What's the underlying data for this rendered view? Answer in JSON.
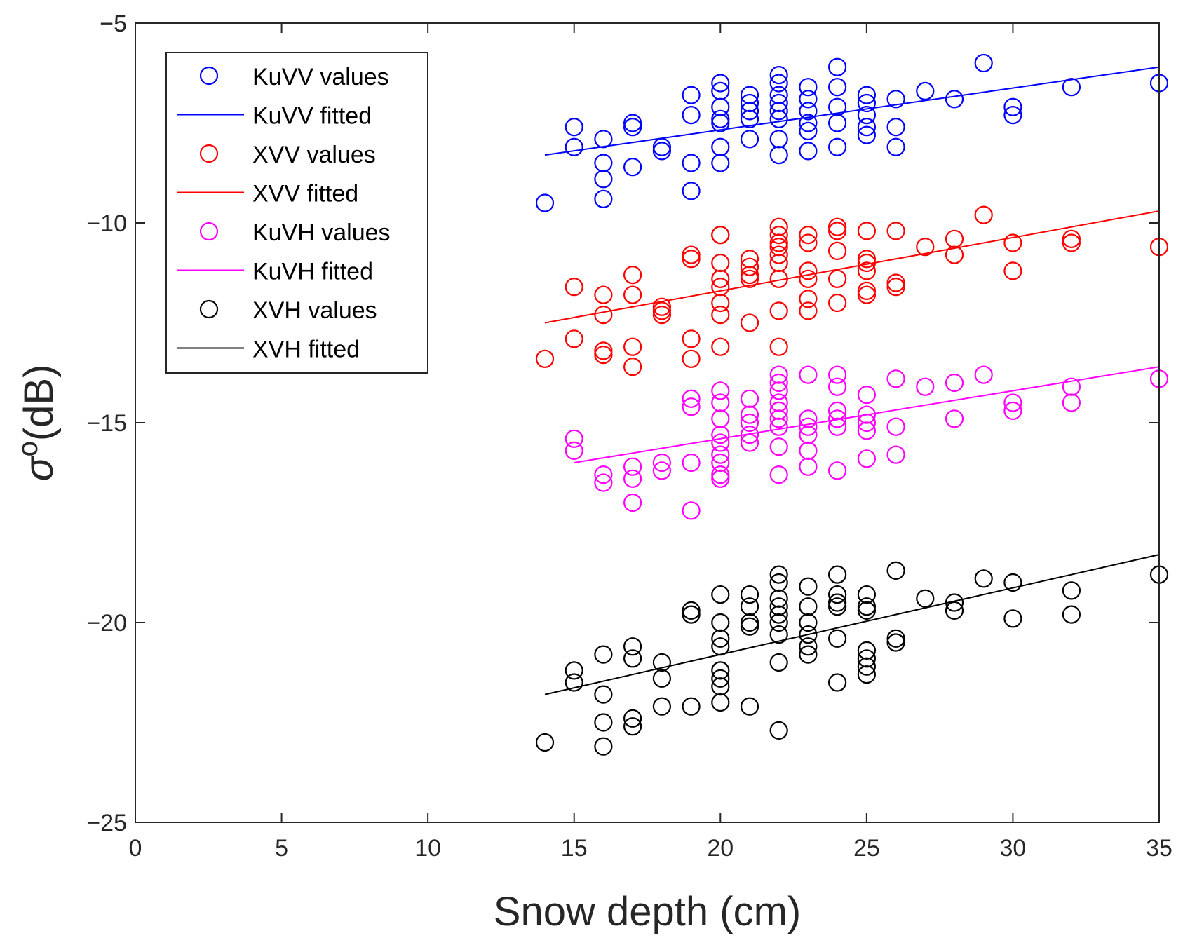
{
  "chart_data": {
    "type": "scatter",
    "xlabel": "Snow depth (cm)",
    "ylabel_symbol": "σ",
    "ylabel_superscript": "o",
    "ylabel_rest": "(dB)",
    "xlim": [
      0,
      35
    ],
    "ylim": [
      -25,
      -5
    ],
    "xticks": [
      0,
      5,
      10,
      15,
      20,
      25,
      30,
      35
    ],
    "yticks": [
      -25,
      -20,
      -15,
      -10,
      -5
    ],
    "grid": false,
    "legend_position": "top-left",
    "series": [
      {
        "name": "KuVV values",
        "fit_name": "KuVV fitted",
        "color": "#0000ff",
        "fit": {
          "x": [
            14,
            35
          ],
          "y": [
            -8.3,
            -6.1
          ]
        },
        "points": [
          [
            14,
            -9.5
          ],
          [
            15,
            -7.6
          ],
          [
            15,
            -8.1
          ],
          [
            16,
            -7.9
          ],
          [
            16,
            -8.5
          ],
          [
            16,
            -8.9
          ],
          [
            16,
            -9.4
          ],
          [
            17,
            -7.5
          ],
          [
            17,
            -7.6
          ],
          [
            17,
            -8.6
          ],
          [
            18,
            -8.1
          ],
          [
            18,
            -8.2
          ],
          [
            19,
            -6.8
          ],
          [
            19,
            -7.3
          ],
          [
            19,
            -8.5
          ],
          [
            19,
            -9.2
          ],
          [
            20,
            -6.5
          ],
          [
            20,
            -6.7
          ],
          [
            20,
            -7.1
          ],
          [
            20,
            -7.4
          ],
          [
            20,
            -7.5
          ],
          [
            20,
            -8.1
          ],
          [
            20,
            -8.5
          ],
          [
            21,
            -6.8
          ],
          [
            21,
            -7.0
          ],
          [
            21,
            -7.2
          ],
          [
            21,
            -7.4
          ],
          [
            21,
            -7.9
          ],
          [
            22,
            -6.3
          ],
          [
            22,
            -6.5
          ],
          [
            22,
            -6.8
          ],
          [
            22,
            -7.0
          ],
          [
            22,
            -7.2
          ],
          [
            22,
            -7.4
          ],
          [
            22,
            -7.9
          ],
          [
            22,
            -8.3
          ],
          [
            23,
            -6.6
          ],
          [
            23,
            -6.9
          ],
          [
            23,
            -7.2
          ],
          [
            23,
            -7.5
          ],
          [
            23,
            -7.7
          ],
          [
            23,
            -8.2
          ],
          [
            24,
            -6.1
          ],
          [
            24,
            -6.6
          ],
          [
            24,
            -7.1
          ],
          [
            24,
            -7.5
          ],
          [
            24,
            -8.1
          ],
          [
            25,
            -6.8
          ],
          [
            25,
            -7.0
          ],
          [
            25,
            -7.3
          ],
          [
            25,
            -7.6
          ],
          [
            25,
            -7.8
          ],
          [
            26,
            -6.9
          ],
          [
            26,
            -7.6
          ],
          [
            26,
            -8.1
          ],
          [
            27,
            -6.7
          ],
          [
            28,
            -6.9
          ],
          [
            29,
            -6.0
          ],
          [
            30,
            -7.1
          ],
          [
            30,
            -7.3
          ],
          [
            32,
            -6.6
          ],
          [
            35,
            -6.5
          ]
        ]
      },
      {
        "name": "XVV values",
        "fit_name": "XVV fitted",
        "color": "#ff0000",
        "fit": {
          "x": [
            14,
            35
          ],
          "y": [
            -12.5,
            -9.7
          ]
        },
        "points": [
          [
            14,
            -13.4
          ],
          [
            15,
            -11.6
          ],
          [
            15,
            -12.9
          ],
          [
            16,
            -11.8
          ],
          [
            16,
            -12.3
          ],
          [
            16,
            -13.2
          ],
          [
            16,
            -13.3
          ],
          [
            17,
            -11.3
          ],
          [
            17,
            -11.8
          ],
          [
            17,
            -13.1
          ],
          [
            17,
            -13.6
          ],
          [
            18,
            -12.1
          ],
          [
            18,
            -12.2
          ],
          [
            18,
            -12.3
          ],
          [
            19,
            -10.8
          ],
          [
            19,
            -10.9
          ],
          [
            19,
            -12.9
          ],
          [
            19,
            -13.4
          ],
          [
            20,
            -10.3
          ],
          [
            20,
            -10.3
          ],
          [
            20,
            -11.0
          ],
          [
            20,
            -11.4
          ],
          [
            20,
            -11.6
          ],
          [
            20,
            -12.0
          ],
          [
            20,
            -12.3
          ],
          [
            20,
            -13.1
          ],
          [
            21,
            -10.9
          ],
          [
            21,
            -11.1
          ],
          [
            21,
            -11.3
          ],
          [
            21,
            -11.4
          ],
          [
            21,
            -12.5
          ],
          [
            22,
            -10.1
          ],
          [
            22,
            -10.3
          ],
          [
            22,
            -10.5
          ],
          [
            22,
            -10.6
          ],
          [
            22,
            -10.8
          ],
          [
            22,
            -11.0
          ],
          [
            22,
            -11.4
          ],
          [
            22,
            -12.2
          ],
          [
            22,
            -13.1
          ],
          [
            23,
            -10.3
          ],
          [
            23,
            -10.5
          ],
          [
            23,
            -11.2
          ],
          [
            23,
            -11.4
          ],
          [
            23,
            -11.9
          ],
          [
            23,
            -12.2
          ],
          [
            24,
            -10.1
          ],
          [
            24,
            -10.2
          ],
          [
            24,
            -10.7
          ],
          [
            24,
            -11.4
          ],
          [
            24,
            -12.0
          ],
          [
            25,
            -10.2
          ],
          [
            25,
            -10.9
          ],
          [
            25,
            -11.0
          ],
          [
            25,
            -11.2
          ],
          [
            25,
            -11.7
          ],
          [
            25,
            -11.8
          ],
          [
            26,
            -10.2
          ],
          [
            26,
            -11.5
          ],
          [
            26,
            -11.6
          ],
          [
            27,
            -10.6
          ],
          [
            28,
            -10.4
          ],
          [
            28,
            -10.8
          ],
          [
            29,
            -9.8
          ],
          [
            30,
            -10.5
          ],
          [
            30,
            -11.2
          ],
          [
            32,
            -10.4
          ],
          [
            32,
            -10.5
          ],
          [
            35,
            -10.6
          ]
        ]
      },
      {
        "name": "KuVH values",
        "fit_name": "KuVH fitted",
        "color": "#ff00ff",
        "fit": {
          "x": [
            15,
            35
          ],
          "y": [
            -16.0,
            -13.6
          ]
        },
        "points": [
          [
            15,
            -15.4
          ],
          [
            15,
            -15.7
          ],
          [
            16,
            -16.3
          ],
          [
            16,
            -16.5
          ],
          [
            17,
            -16.1
          ],
          [
            17,
            -16.4
          ],
          [
            17,
            -17.0
          ],
          [
            18,
            -16.0
          ],
          [
            18,
            -16.2
          ],
          [
            19,
            -14.4
          ],
          [
            19,
            -14.6
          ],
          [
            19,
            -16.0
          ],
          [
            19,
            -17.2
          ],
          [
            20,
            -14.2
          ],
          [
            20,
            -14.5
          ],
          [
            20,
            -14.9
          ],
          [
            20,
            -15.3
          ],
          [
            20,
            -15.5
          ],
          [
            20,
            -15.8
          ],
          [
            20,
            -16.0
          ],
          [
            20,
            -16.3
          ],
          [
            20,
            -16.4
          ],
          [
            21,
            -14.4
          ],
          [
            21,
            -14.8
          ],
          [
            21,
            -15.0
          ],
          [
            21,
            -15.3
          ],
          [
            21,
            -15.5
          ],
          [
            22,
            -13.8
          ],
          [
            22,
            -14.0
          ],
          [
            22,
            -14.2
          ],
          [
            22,
            -14.5
          ],
          [
            22,
            -14.7
          ],
          [
            22,
            -14.9
          ],
          [
            22,
            -15.1
          ],
          [
            22,
            -15.6
          ],
          [
            22,
            -16.3
          ],
          [
            23,
            -13.8
          ],
          [
            23,
            -14.9
          ],
          [
            23,
            -15.1
          ],
          [
            23,
            -15.3
          ],
          [
            23,
            -15.7
          ],
          [
            23,
            -16.1
          ],
          [
            24,
            -13.8
          ],
          [
            24,
            -14.1
          ],
          [
            24,
            -14.7
          ],
          [
            24,
            -14.9
          ],
          [
            24,
            -15.1
          ],
          [
            24,
            -16.2
          ],
          [
            25,
            -14.3
          ],
          [
            25,
            -14.8
          ],
          [
            25,
            -15.0
          ],
          [
            25,
            -15.2
          ],
          [
            25,
            -15.9
          ],
          [
            26,
            -13.9
          ],
          [
            26,
            -15.1
          ],
          [
            26,
            -15.8
          ],
          [
            27,
            -14.1
          ],
          [
            28,
            -14.0
          ],
          [
            28,
            -14.9
          ],
          [
            29,
            -13.8
          ],
          [
            30,
            -14.5
          ],
          [
            30,
            -14.7
          ],
          [
            32,
            -14.1
          ],
          [
            32,
            -14.5
          ],
          [
            35,
            -13.9
          ]
        ]
      },
      {
        "name": "XVH values",
        "fit_name": "XVH fitted",
        "color": "#000000",
        "fit": {
          "x": [
            14,
            35
          ],
          "y": [
            -21.8,
            -18.3
          ]
        },
        "points": [
          [
            14,
            -23.0
          ],
          [
            15,
            -21.2
          ],
          [
            15,
            -21.5
          ],
          [
            16,
            -20.8
          ],
          [
            16,
            -21.8
          ],
          [
            16,
            -22.5
          ],
          [
            16,
            -23.1
          ],
          [
            17,
            -20.6
          ],
          [
            17,
            -20.9
          ],
          [
            17,
            -22.4
          ],
          [
            17,
            -22.6
          ],
          [
            18,
            -21.0
          ],
          [
            18,
            -21.4
          ],
          [
            18,
            -22.1
          ],
          [
            19,
            -19.7
          ],
          [
            19,
            -19.8
          ],
          [
            19,
            -22.1
          ],
          [
            20,
            -19.3
          ],
          [
            20,
            -20.0
          ],
          [
            20,
            -20.4
          ],
          [
            20,
            -20.6
          ],
          [
            20,
            -21.2
          ],
          [
            20,
            -21.4
          ],
          [
            20,
            -21.6
          ],
          [
            20,
            -22.0
          ],
          [
            21,
            -19.3
          ],
          [
            21,
            -19.6
          ],
          [
            21,
            -20.0
          ],
          [
            21,
            -20.1
          ],
          [
            21,
            -22.1
          ],
          [
            22,
            -18.8
          ],
          [
            22,
            -19.0
          ],
          [
            22,
            -19.4
          ],
          [
            22,
            -19.6
          ],
          [
            22,
            -19.8
          ],
          [
            22,
            -20.0
          ],
          [
            22,
            -20.3
          ],
          [
            22,
            -21.0
          ],
          [
            22,
            -22.7
          ],
          [
            23,
            -19.1
          ],
          [
            23,
            -19.6
          ],
          [
            23,
            -20.0
          ],
          [
            23,
            -20.3
          ],
          [
            23,
            -20.6
          ],
          [
            23,
            -20.8
          ],
          [
            24,
            -18.8
          ],
          [
            24,
            -19.3
          ],
          [
            24,
            -19.5
          ],
          [
            24,
            -19.6
          ],
          [
            24,
            -20.4
          ],
          [
            24,
            -21.5
          ],
          [
            25,
            -19.3
          ],
          [
            25,
            -19.6
          ],
          [
            25,
            -19.7
          ],
          [
            25,
            -20.7
          ],
          [
            25,
            -20.9
          ],
          [
            25,
            -21.1
          ],
          [
            25,
            -21.3
          ],
          [
            26,
            -18.7
          ],
          [
            26,
            -20.4
          ],
          [
            26,
            -20.5
          ],
          [
            27,
            -19.4
          ],
          [
            28,
            -19.5
          ],
          [
            28,
            -19.7
          ],
          [
            29,
            -18.9
          ],
          [
            30,
            -19.0
          ],
          [
            30,
            -19.9
          ],
          [
            32,
            -19.2
          ],
          [
            32,
            -19.8
          ],
          [
            35,
            -18.8
          ]
        ]
      }
    ]
  }
}
